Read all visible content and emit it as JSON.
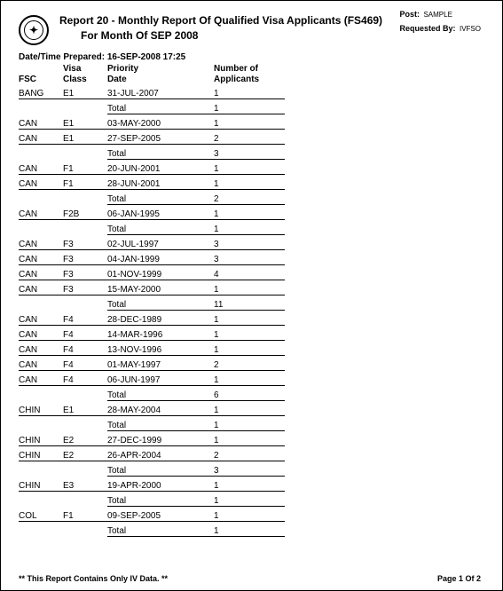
{
  "header": {
    "title_line1": "Report 20 - Monthly Report Of Qualified Visa Applicants (FS469)",
    "title_line2": "For Month Of SEP 2008",
    "post_label": "Post:",
    "post_value": "SAMPLE",
    "requested_label": "Requested By:",
    "requested_value": "IVFSO",
    "prepared": "Date/Time Prepared: 16-SEP-2008 17:25"
  },
  "columns": {
    "fsc": "FSC",
    "visa_class": "Visa\nClass",
    "priority_date": "Priority\nDate",
    "num_applicants": "Number of\nApplicants"
  },
  "groups": [
    {
      "rows": [
        {
          "fsc": "BANG",
          "class": "E1",
          "date": "31-JUL-2007",
          "count": "1"
        }
      ],
      "total": "1"
    },
    {
      "rows": [
        {
          "fsc": "CAN",
          "class": "E1",
          "date": "03-MAY-2000",
          "count": "1"
        },
        {
          "fsc": "CAN",
          "class": "E1",
          "date": "27-SEP-2005",
          "count": "2"
        }
      ],
      "total": "3"
    },
    {
      "rows": [
        {
          "fsc": "CAN",
          "class": "F1",
          "date": "20-JUN-2001",
          "count": "1"
        },
        {
          "fsc": "CAN",
          "class": "F1",
          "date": "28-JUN-2001",
          "count": "1"
        }
      ],
      "total": "2"
    },
    {
      "rows": [
        {
          "fsc": "CAN",
          "class": "F2B",
          "date": "06-JAN-1995",
          "count": "1"
        }
      ],
      "total": "1"
    },
    {
      "rows": [
        {
          "fsc": "CAN",
          "class": "F3",
          "date": "02-JUL-1997",
          "count": "3"
        },
        {
          "fsc": "CAN",
          "class": "F3",
          "date": "04-JAN-1999",
          "count": "3"
        },
        {
          "fsc": "CAN",
          "class": "F3",
          "date": "01-NOV-1999",
          "count": "4"
        },
        {
          "fsc": "CAN",
          "class": "F3",
          "date": "15-MAY-2000",
          "count": "1"
        }
      ],
      "total": "11"
    },
    {
      "rows": [
        {
          "fsc": "CAN",
          "class": "F4",
          "date": "28-DEC-1989",
          "count": "1"
        },
        {
          "fsc": "CAN",
          "class": "F4",
          "date": "14-MAR-1996",
          "count": "1"
        },
        {
          "fsc": "CAN",
          "class": "F4",
          "date": "13-NOV-1996",
          "count": "1"
        },
        {
          "fsc": "CAN",
          "class": "F4",
          "date": "01-MAY-1997",
          "count": "2"
        },
        {
          "fsc": "CAN",
          "class": "F4",
          "date": "06-JUN-1997",
          "count": "1"
        }
      ],
      "total": "6"
    },
    {
      "rows": [
        {
          "fsc": "CHIN",
          "class": "E1",
          "date": "28-MAY-2004",
          "count": "1"
        }
      ],
      "total": "1"
    },
    {
      "rows": [
        {
          "fsc": "CHIN",
          "class": "E2",
          "date": "27-DEC-1999",
          "count": "1"
        },
        {
          "fsc": "CHIN",
          "class": "E2",
          "date": "26-APR-2004",
          "count": "2"
        }
      ],
      "total": "3"
    },
    {
      "rows": [
        {
          "fsc": "CHIN",
          "class": "E3",
          "date": "19-APR-2000",
          "count": "1"
        }
      ],
      "total": "1"
    },
    {
      "rows": [
        {
          "fsc": "COL",
          "class": "F1",
          "date": "09-SEP-2005",
          "count": "1"
        }
      ],
      "total": "1"
    }
  ],
  "total_label": "Total",
  "footer": {
    "note": "** This Report Contains Only IV Data. **",
    "page": "Page 1 Of 2"
  }
}
